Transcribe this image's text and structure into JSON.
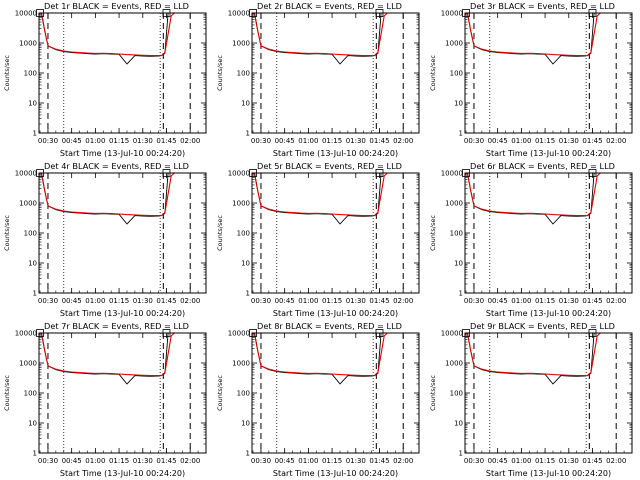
{
  "figure": {
    "xlabel": "Start Time (13-Jul-10 00:24:20)",
    "ylabel": "Counts/sec",
    "x_tick_labels": [
      "00:30",
      "00:45",
      "01:00",
      "01:15",
      "01:30",
      "01:45",
      "02:00"
    ],
    "y_tick_labels": [
      "1",
      "10",
      "100",
      "1000",
      "10000"
    ],
    "colors": {
      "events": "#000000",
      "lld": "#e00000",
      "axes": "#000000",
      "background": "#ffffff"
    }
  },
  "chart_data": [
    {
      "type": "line",
      "title": "Det 1r BLACK = Events, RED = LLD",
      "xlabel": "Start Time (13-Jul-10 00:24:20)",
      "ylabel": "Counts/sec",
      "y_scale": "log",
      "ylim": [
        1,
        10000
      ],
      "xlim": [
        "00:24:20",
        "02:10"
      ],
      "x": [
        "00:24:20",
        "00:26",
        "00:28",
        "00:30",
        "00:35",
        "00:40",
        "00:45",
        "00:50",
        "00:55",
        "01:00",
        "01:05",
        "01:10",
        "01:15",
        "01:20",
        "01:25",
        "01:30",
        "01:35",
        "01:40",
        "01:42",
        "01:44",
        "01:46",
        "01:48",
        "01:50"
      ],
      "series": [
        {
          "name": "Events",
          "values": [
            10000,
            10000,
            2500,
            800,
            600,
            520,
            480,
            460,
            440,
            430,
            440,
            430,
            420,
            200,
            380,
            370,
            360,
            370,
            380,
            450,
            10000,
            10000,
            10000
          ]
        },
        {
          "name": "LLD",
          "values": [
            10000,
            9000,
            2500,
            800,
            620,
            540,
            500,
            480,
            460,
            450,
            455,
            445,
            430,
            410,
            400,
            390,
            380,
            380,
            390,
            480,
            2000,
            8000,
            10000
          ]
        }
      ],
      "vlines_dashed": [
        "00:30",
        "01:43",
        "02:00"
      ],
      "vlines_dotted": [
        "00:40",
        "01:41"
      ],
      "markers": [
        "00:25",
        "01:45"
      ]
    },
    {
      "type": "line",
      "title": "Det 2r BLACK = Events, RED = LLD",
      "xlabel": "Start Time (13-Jul-10 00:24:20)",
      "ylabel": "Counts/sec",
      "y_scale": "log",
      "ylim": [
        1,
        10000
      ],
      "xlim": [
        "00:24:20",
        "02:10"
      ],
      "x": [
        "00:24:20",
        "00:26",
        "00:28",
        "00:30",
        "00:35",
        "00:40",
        "00:45",
        "00:50",
        "00:55",
        "01:00",
        "01:05",
        "01:10",
        "01:15",
        "01:20",
        "01:25",
        "01:30",
        "01:35",
        "01:40",
        "01:42",
        "01:44",
        "01:46",
        "01:48",
        "01:50"
      ],
      "series": [
        {
          "name": "Events",
          "values": [
            10000,
            10000,
            2500,
            800,
            600,
            520,
            480,
            460,
            440,
            430,
            440,
            430,
            420,
            200,
            380,
            370,
            360,
            370,
            380,
            450,
            10000,
            10000,
            10000
          ]
        },
        {
          "name": "LLD",
          "values": [
            10000,
            9000,
            2500,
            800,
            620,
            540,
            500,
            480,
            460,
            450,
            455,
            445,
            430,
            410,
            400,
            390,
            380,
            380,
            390,
            480,
            2000,
            8000,
            10000
          ]
        }
      ],
      "vlines_dashed": [
        "00:30",
        "01:43",
        "02:00"
      ],
      "vlines_dotted": [
        "00:40",
        "01:41"
      ],
      "markers": [
        "00:25",
        "01:45"
      ]
    },
    {
      "type": "line",
      "title": "Det 3r BLACK = Events, RED = LLD",
      "xlabel": "Start Time (13-Jul-10 00:24:20)",
      "ylabel": "Counts/sec",
      "y_scale": "log",
      "ylim": [
        1,
        10000
      ],
      "xlim": [
        "00:24:20",
        "02:10"
      ],
      "x": [
        "00:24:20",
        "00:26",
        "00:28",
        "00:30",
        "00:35",
        "00:40",
        "00:45",
        "00:50",
        "00:55",
        "01:00",
        "01:05",
        "01:10",
        "01:15",
        "01:20",
        "01:25",
        "01:30",
        "01:35",
        "01:40",
        "01:42",
        "01:44",
        "01:46",
        "01:48",
        "01:50"
      ],
      "series": [
        {
          "name": "Events",
          "values": [
            10000,
            10000,
            2500,
            800,
            600,
            520,
            480,
            460,
            440,
            430,
            440,
            430,
            420,
            200,
            380,
            370,
            360,
            370,
            380,
            450,
            10000,
            10000,
            10000
          ]
        },
        {
          "name": "LLD",
          "values": [
            10000,
            9000,
            2500,
            800,
            620,
            540,
            500,
            480,
            460,
            450,
            455,
            445,
            430,
            410,
            400,
            390,
            380,
            380,
            390,
            480,
            2000,
            8000,
            10000
          ]
        }
      ],
      "vlines_dashed": [
        "00:30",
        "01:43",
        "02:00"
      ],
      "vlines_dotted": [
        "00:40",
        "01:41"
      ],
      "markers": [
        "00:25",
        "01:45"
      ]
    },
    {
      "type": "line",
      "title": "Det 4r BLACK = Events, RED = LLD",
      "xlabel": "Start Time (13-Jul-10 00:24:20)",
      "ylabel": "Counts/sec",
      "y_scale": "log",
      "ylim": [
        1,
        10000
      ],
      "xlim": [
        "00:24:20",
        "02:10"
      ],
      "x": [
        "00:24:20",
        "00:26",
        "00:28",
        "00:30",
        "00:35",
        "00:40",
        "00:45",
        "00:50",
        "00:55",
        "01:00",
        "01:05",
        "01:10",
        "01:15",
        "01:20",
        "01:25",
        "01:30",
        "01:35",
        "01:40",
        "01:42",
        "01:44",
        "01:46",
        "01:48",
        "01:50"
      ],
      "series": [
        {
          "name": "Events",
          "values": [
            10000,
            10000,
            2500,
            800,
            600,
            520,
            480,
            460,
            440,
            430,
            440,
            430,
            420,
            200,
            380,
            370,
            360,
            370,
            380,
            450,
            10000,
            10000,
            10000
          ]
        },
        {
          "name": "LLD",
          "values": [
            10000,
            9000,
            2500,
            800,
            620,
            540,
            500,
            480,
            460,
            450,
            455,
            445,
            430,
            410,
            400,
            390,
            380,
            380,
            390,
            480,
            2000,
            8000,
            10000
          ]
        }
      ],
      "vlines_dashed": [
        "00:30",
        "01:43",
        "02:00"
      ],
      "vlines_dotted": [
        "00:40",
        "01:41"
      ],
      "markers": [
        "00:25",
        "01:45"
      ]
    },
    {
      "type": "line",
      "title": "Det 5r BLACK = Events, RED = LLD",
      "xlabel": "Start Time (13-Jul-10 00:24:20)",
      "ylabel": "Counts/sec",
      "y_scale": "log",
      "ylim": [
        1,
        10000
      ],
      "xlim": [
        "00:24:20",
        "02:10"
      ],
      "x": [
        "00:24:20",
        "00:26",
        "00:28",
        "00:30",
        "00:35",
        "00:40",
        "00:45",
        "00:50",
        "00:55",
        "01:00",
        "01:05",
        "01:10",
        "01:15",
        "01:20",
        "01:25",
        "01:30",
        "01:35",
        "01:40",
        "01:42",
        "01:44",
        "01:46",
        "01:48",
        "01:50"
      ],
      "series": [
        {
          "name": "Events",
          "values": [
            10000,
            10000,
            2500,
            800,
            600,
            520,
            480,
            460,
            440,
            430,
            440,
            430,
            420,
            200,
            380,
            370,
            360,
            370,
            380,
            450,
            10000,
            10000,
            10000
          ]
        },
        {
          "name": "LLD",
          "values": [
            10000,
            9000,
            2500,
            800,
            620,
            540,
            500,
            480,
            460,
            450,
            455,
            445,
            430,
            410,
            400,
            390,
            380,
            380,
            390,
            480,
            2000,
            8000,
            10000
          ]
        }
      ],
      "vlines_dashed": [
        "00:30",
        "01:43",
        "02:00"
      ],
      "vlines_dotted": [
        "00:40",
        "01:41"
      ],
      "markers": [
        "00:25",
        "01:45"
      ]
    },
    {
      "type": "line",
      "title": "Det 6r BLACK = Events, RED = LLD",
      "xlabel": "Start Time (13-Jul-10 00:24:20)",
      "ylabel": "Counts/sec",
      "y_scale": "log",
      "ylim": [
        1,
        10000
      ],
      "xlim": [
        "00:24:20",
        "02:10"
      ],
      "x": [
        "00:24:20",
        "00:26",
        "00:28",
        "00:30",
        "00:35",
        "00:40",
        "00:45",
        "00:50",
        "00:55",
        "01:00",
        "01:05",
        "01:10",
        "01:15",
        "01:20",
        "01:25",
        "01:30",
        "01:35",
        "01:40",
        "01:42",
        "01:44",
        "01:46",
        "01:48",
        "01:50"
      ],
      "series": [
        {
          "name": "Events",
          "values": [
            10000,
            10000,
            2500,
            800,
            600,
            520,
            480,
            460,
            440,
            430,
            440,
            430,
            420,
            200,
            380,
            370,
            360,
            370,
            380,
            450,
            10000,
            10000,
            10000
          ]
        },
        {
          "name": "LLD",
          "values": [
            10000,
            9000,
            2500,
            800,
            620,
            540,
            500,
            480,
            460,
            450,
            455,
            445,
            430,
            410,
            400,
            390,
            380,
            380,
            390,
            480,
            2000,
            8000,
            10000
          ]
        }
      ],
      "vlines_dashed": [
        "00:30",
        "01:43",
        "02:00"
      ],
      "vlines_dotted": [
        "00:40",
        "01:41"
      ],
      "markers": [
        "00:25",
        "01:45"
      ]
    },
    {
      "type": "line",
      "title": "Det 7r BLACK = Events, RED = LLD",
      "xlabel": "Start Time (13-Jul-10 00:24:20)",
      "ylabel": "Counts/sec",
      "y_scale": "log",
      "ylim": [
        1,
        10000
      ],
      "xlim": [
        "00:24:20",
        "02:10"
      ],
      "x": [
        "00:24:20",
        "00:26",
        "00:28",
        "00:30",
        "00:35",
        "00:40",
        "00:45",
        "00:50",
        "00:55",
        "01:00",
        "01:05",
        "01:10",
        "01:15",
        "01:20",
        "01:25",
        "01:30",
        "01:35",
        "01:40",
        "01:42",
        "01:44",
        "01:46",
        "01:48",
        "01:50"
      ],
      "series": [
        {
          "name": "Events",
          "values": [
            10000,
            10000,
            2500,
            800,
            600,
            520,
            480,
            460,
            440,
            430,
            440,
            430,
            420,
            200,
            380,
            370,
            360,
            370,
            380,
            450,
            10000,
            10000,
            10000
          ]
        },
        {
          "name": "LLD",
          "values": [
            10000,
            9000,
            2500,
            800,
            620,
            540,
            500,
            480,
            460,
            450,
            455,
            445,
            430,
            410,
            400,
            390,
            380,
            380,
            390,
            480,
            2000,
            8000,
            10000
          ]
        }
      ],
      "vlines_dashed": [
        "00:30",
        "01:43",
        "02:00"
      ],
      "vlines_dotted": [
        "00:40",
        "01:41"
      ],
      "markers": [
        "00:25",
        "01:45"
      ]
    },
    {
      "type": "line",
      "title": "Det 8r BLACK = Events, RED = LLD",
      "xlabel": "Start Time (13-Jul-10 00:24:20)",
      "ylabel": "Counts/sec",
      "y_scale": "log",
      "ylim": [
        1,
        10000
      ],
      "xlim": [
        "00:24:20",
        "02:10"
      ],
      "x": [
        "00:24:20",
        "00:26",
        "00:28",
        "00:30",
        "00:35",
        "00:40",
        "00:45",
        "00:50",
        "00:55",
        "01:00",
        "01:05",
        "01:10",
        "01:15",
        "01:20",
        "01:25",
        "01:30",
        "01:35",
        "01:40",
        "01:42",
        "01:44",
        "01:46",
        "01:48",
        "01:50"
      ],
      "series": [
        {
          "name": "Events",
          "values": [
            10000,
            10000,
            2500,
            800,
            600,
            520,
            480,
            460,
            440,
            430,
            440,
            430,
            420,
            200,
            380,
            370,
            360,
            370,
            380,
            450,
            10000,
            10000,
            10000
          ]
        },
        {
          "name": "LLD",
          "values": [
            10000,
            9000,
            2500,
            800,
            620,
            540,
            500,
            480,
            460,
            450,
            455,
            445,
            430,
            410,
            400,
            390,
            380,
            380,
            390,
            480,
            2000,
            8000,
            10000
          ]
        }
      ],
      "vlines_dashed": [
        "00:30",
        "01:43",
        "02:00"
      ],
      "vlines_dotted": [
        "00:40",
        "01:41"
      ],
      "markers": [
        "00:25",
        "01:45"
      ]
    },
    {
      "type": "line",
      "title": "Det 9r BLACK = Events, RED = LLD",
      "xlabel": "Start Time (13-Jul-10 00:24:20)",
      "ylabel": "Counts/sec",
      "y_scale": "log",
      "ylim": [
        1,
        10000
      ],
      "xlim": [
        "00:24:20",
        "02:10"
      ],
      "x": [
        "00:24:20",
        "00:26",
        "00:28",
        "00:30",
        "00:35",
        "00:40",
        "00:45",
        "00:50",
        "00:55",
        "01:00",
        "01:05",
        "01:10",
        "01:15",
        "01:20",
        "01:25",
        "01:30",
        "01:35",
        "01:40",
        "01:42",
        "01:44",
        "01:46",
        "01:48",
        "01:50"
      ],
      "series": [
        {
          "name": "Events",
          "values": [
            10000,
            10000,
            2500,
            800,
            600,
            520,
            480,
            460,
            440,
            430,
            440,
            430,
            420,
            200,
            380,
            370,
            360,
            370,
            380,
            450,
            10000,
            10000,
            10000
          ]
        },
        {
          "name": "LLD",
          "values": [
            10000,
            9000,
            2500,
            800,
            620,
            540,
            500,
            480,
            460,
            450,
            455,
            445,
            430,
            410,
            400,
            390,
            380,
            380,
            390,
            480,
            2000,
            8000,
            10000
          ]
        }
      ],
      "vlines_dashed": [
        "00:30",
        "01:43",
        "02:00"
      ],
      "vlines_dotted": [
        "00:40",
        "01:41"
      ],
      "markers": [
        "00:25",
        "01:45"
      ]
    }
  ]
}
